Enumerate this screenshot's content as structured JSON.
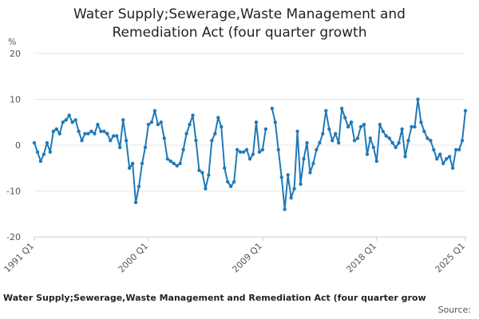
{
  "chart_data": {
    "type": "line",
    "title_lines": [
      "Water Supply;Sewerage,Waste Management and",
      "Remediation Act (four quarter growth"
    ],
    "ylabel": "%",
    "ylim": [
      -20,
      20
    ],
    "yticks": [
      -20,
      -10,
      0,
      10,
      20
    ],
    "xlim": [
      0,
      136
    ],
    "xticks": [
      {
        "label": "1991 Q1",
        "index": 0
      },
      {
        "label": "2000 Q1",
        "index": 36
      },
      {
        "label": "2009 Q1",
        "index": 72
      },
      {
        "label": "2018 Q1",
        "index": 108
      },
      {
        "label": "2025 Q1",
        "index": 136
      }
    ],
    "grid": true,
    "footer": "Water Supply;Sewerage,Waste Management and Remediation Act (four quarter grow",
    "source": "Source:",
    "series": [
      {
        "color": "#1f7ab8",
        "values": [
          0.5,
          -1.5,
          -3.5,
          -2,
          0.5,
          -1.5,
          3,
          3.5,
          2.5,
          5,
          5.5,
          6.5,
          5,
          5.5,
          3,
          1,
          2.5,
          2.5,
          3,
          2.5,
          4.5,
          3,
          3,
          2.5,
          1,
          2,
          2,
          -0.5,
          5.5,
          1,
          -5,
          -4,
          -12.5,
          -9,
          -4,
          -0.5,
          4.5,
          5,
          7.5,
          4.5,
          5,
          1.5,
          -3,
          -3.5,
          -4,
          -4.5,
          -4,
          -1,
          2.5,
          4.5,
          6.5,
          1,
          -5.5,
          -6,
          -9.5,
          -6.5,
          1,
          2.5,
          6,
          4,
          -5,
          -8,
          -9,
          -8,
          -1,
          -1.5,
          -1.5,
          -1,
          -3,
          -2,
          5,
          -1.5,
          -1,
          3.5,
          null,
          8,
          5,
          -1,
          -7,
          -14,
          -6.5,
          -11.5,
          -9.5,
          3,
          -8.5,
          -3,
          0.5,
          -6,
          -4,
          -1,
          0.5,
          2.5,
          7.5,
          3.5,
          1,
          2.5,
          0.5,
          8,
          6,
          4,
          5,
          1,
          1.5,
          4,
          4.5,
          -2,
          1.5,
          -0.5,
          -3.5,
          4.5,
          3,
          2,
          1.5,
          0.5,
          -0.5,
          0.5,
          3.5,
          -2.5,
          1,
          4,
          4,
          10,
          5,
          3,
          1.5,
          1,
          -1,
          -3,
          -2,
          -4,
          -3,
          -2.5,
          -5,
          -1,
          -1,
          1,
          7.5
        ]
      }
    ]
  }
}
